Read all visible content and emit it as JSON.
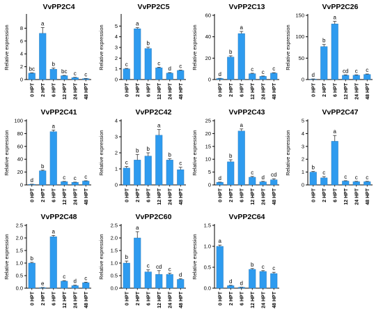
{
  "figure": {
    "ylabel": "Relative expression",
    "bar_color": "#2E9BEF",
    "categories": [
      "0 HPT",
      "2 HPT",
      "6 HPT",
      "12 HPT",
      "24 HPT",
      "48 HPT"
    ]
  },
  "chart_data": [
    {
      "type": "bar",
      "title": "VvPP2C4",
      "ylabel": "Relative expression",
      "ylim": [
        0,
        10
      ],
      "yticks": [
        0,
        2,
        4,
        6,
        8
      ],
      "categories": [
        "0 HPT",
        "2 HPT",
        "6 HPT",
        "12 HPT",
        "24 HPT",
        "48 HPT"
      ],
      "values": [
        1.0,
        7.2,
        1.6,
        0.6,
        0.3,
        0.15
      ],
      "errors": [
        0.05,
        0.9,
        0.2,
        0.05,
        0.05,
        0.03
      ],
      "annotations": [
        "bc",
        "a",
        "b",
        "bc",
        "c",
        "c"
      ]
    },
    {
      "type": "bar",
      "title": "VvPP2C5",
      "ylabel": "Relative expression",
      "ylim": [
        0,
        6
      ],
      "yticks": [
        0,
        1,
        2,
        3,
        4,
        5
      ],
      "categories": [
        "0 HPT",
        "2 HPT",
        "6 HPT",
        "12 HPT",
        "24 HPT",
        "48 HPT"
      ],
      "values": [
        1.0,
        4.75,
        2.9,
        1.1,
        0.6,
        0.85
      ],
      "errors": [
        0.04,
        0.1,
        0.12,
        0.05,
        0.05,
        0.04
      ],
      "annotations": [
        "c",
        "a",
        "b",
        "c",
        "d",
        "c"
      ]
    },
    {
      "type": "bar",
      "title": "VvPP2C13",
      "ylabel": "Relative expression",
      "ylim": [
        0,
        60
      ],
      "yticks": [
        0,
        20,
        40,
        60
      ],
      "categories": [
        "0 HPT",
        "2 HPT",
        "6 HPT",
        "12 HPT",
        "24 HPT",
        "48 HPT"
      ],
      "values": [
        1,
        21,
        43,
        5.5,
        3,
        6
      ],
      "errors": [
        0.2,
        1.2,
        2,
        0.4,
        0.3,
        0.4
      ],
      "annotations": [
        "d",
        "b",
        "a",
        "c",
        "c",
        "c"
      ]
    },
    {
      "type": "bar",
      "title": "VvPP2C26",
      "ylabel": "Relative expression",
      "ylim": [
        0,
        150
      ],
      "yticks": [
        0,
        50,
        100,
        150
      ],
      "categories": [
        "0 HPT",
        "2 HPT",
        "6 HPT",
        "12 HPT",
        "24 HPT",
        "48 HPT"
      ],
      "values": [
        1,
        77,
        130,
        10,
        10,
        12
      ],
      "errors": [
        0.5,
        5,
        6,
        1,
        1,
        1
      ],
      "annotations": [
        "d",
        "b",
        "a",
        "cd",
        "c",
        "c"
      ]
    },
    {
      "type": "bar",
      "title": "VvPP2C41",
      "ylabel": "Relative expression",
      "ylim": [
        0,
        100
      ],
      "yticks": [
        0,
        20,
        40,
        60,
        80,
        100
      ],
      "categories": [
        "0 HPT",
        "2 HPT",
        "6 HPT",
        "12 HPT",
        "24 HPT",
        "48 HPT"
      ],
      "values": [
        1,
        22,
        83,
        5,
        4,
        6
      ],
      "errors": [
        0.2,
        1,
        2.5,
        0.5,
        0.4,
        0.5
      ],
      "annotations": [
        "d",
        "b",
        "a",
        "c",
        "c",
        "c"
      ]
    },
    {
      "type": "bar",
      "title": "VvPP2C42",
      "ylabel": "Relative expression",
      "ylim": [
        0,
        4
      ],
      "yticks": [
        0,
        1,
        2,
        3,
        4
      ],
      "categories": [
        "0 HPT",
        "2 HPT",
        "6 HPT",
        "12 HPT",
        "24 HPT",
        "48 HPT"
      ],
      "values": [
        1.05,
        1.55,
        1.8,
        3.1,
        1.55,
        0.95
      ],
      "errors": [
        0.1,
        0.35,
        0.2,
        0.35,
        0.08,
        0.15
      ],
      "annotations": [
        "c",
        "b",
        "b",
        "a",
        "b",
        "c"
      ]
    },
    {
      "type": "bar",
      "title": "VvPP2C43",
      "ylabel": "Relative expression",
      "ylim": [
        0,
        25
      ],
      "yticks": [
        0,
        5,
        10,
        15,
        20,
        25
      ],
      "categories": [
        "0 HPT",
        "2 HPT",
        "6 HPT",
        "12 HPT",
        "24 HPT",
        "48 HPT"
      ],
      "values": [
        1,
        9,
        21,
        3,
        1.2,
        2
      ],
      "errors": [
        0.1,
        0.8,
        0.8,
        0.3,
        0.2,
        0.4
      ],
      "annotations": [
        "d",
        "b",
        "a",
        "c",
        "d",
        "cd"
      ]
    },
    {
      "type": "bar",
      "title": "VvPP2C47",
      "ylabel": "Relative expression",
      "ylim": [
        0,
        5
      ],
      "yticks": [
        0,
        1,
        2,
        3,
        4,
        5
      ],
      "categories": [
        "0 HPT",
        "2 HPT",
        "6 HPT",
        "12 HPT",
        "24 HPT",
        "48 HPT"
      ],
      "values": [
        1.0,
        0.55,
        3.4,
        0.3,
        0.25,
        0.25
      ],
      "errors": [
        0.05,
        0.1,
        0.45,
        0.03,
        0.03,
        0.03
      ],
      "annotations": [
        "b",
        "c",
        "a",
        "c",
        "c",
        "c"
      ]
    },
    {
      "type": "bar",
      "title": "VvPP2C48",
      "ylabel": "Relative expression",
      "ylim": [
        0,
        2.5
      ],
      "yticks": [
        0,
        0.5,
        1.0,
        1.5,
        2.0,
        2.5
      ],
      "categories": [
        "0 HPT",
        "2 HPT",
        "6 HPT",
        "12 HPT",
        "24 HPT",
        "48 HPT"
      ],
      "values": [
        1.0,
        0.02,
        2.05,
        0.28,
        0.1,
        0.22
      ],
      "errors": [
        0.03,
        0.01,
        0.05,
        0.02,
        0.02,
        0.02
      ],
      "annotations": [
        "b",
        "e",
        "a",
        "c",
        "d",
        "c"
      ]
    },
    {
      "type": "bar",
      "title": "VvPP2C60",
      "ylabel": "Relative expression",
      "ylim": [
        0,
        2.5
      ],
      "yticks": [
        0,
        0.5,
        1.0,
        1.5,
        2.0,
        2.5
      ],
      "categories": [
        "0 HPT",
        "2 HPT",
        "6 HPT",
        "12 HPT",
        "24 HPT",
        "48 HPT"
      ],
      "values": [
        1.0,
        2.0,
        0.65,
        0.55,
        0.55,
        0.35
      ],
      "errors": [
        0.08,
        0.25,
        0.08,
        0.15,
        0.05,
        0.03
      ],
      "annotations": [
        "b",
        "a",
        "c",
        "cd",
        "c",
        "d"
      ]
    },
    {
      "type": "bar",
      "title": "VvPP2C64",
      "ylabel": "Relative expression",
      "ylim": [
        0,
        1.5
      ],
      "yticks": [
        0,
        0.5,
        1.0,
        1.5
      ],
      "categories": [
        "0 HPT",
        "2 HPT",
        "6 HPT",
        "12 HPT",
        "24 HPT",
        "48 HPT"
      ],
      "values": [
        1.0,
        0.06,
        0.02,
        0.45,
        0.4,
        0.35
      ],
      "errors": [
        0.03,
        0.01,
        0.005,
        0.02,
        0.02,
        0.03
      ],
      "annotations": [
        "a",
        "d",
        "d",
        "b",
        "c",
        "c"
      ]
    }
  ]
}
